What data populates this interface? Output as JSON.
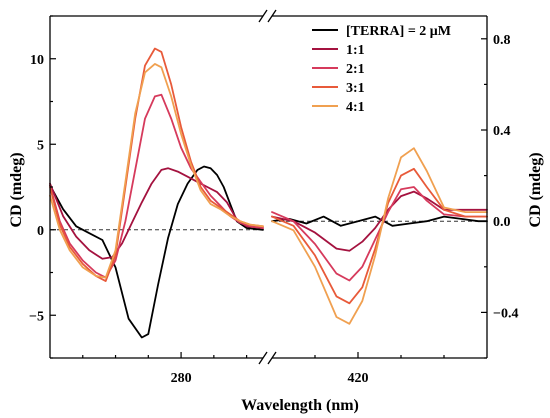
{
  "chart_data": {
    "type": "line",
    "xlabel": "Wavelength (nm)",
    "ylabel_left": "CD (mdeg)",
    "ylabel_right": "CD (mdeg)",
    "segments": [
      {
        "name": "left",
        "xlim": [
          240,
          305
        ],
        "ylim": [
          -7.5,
          12.5
        ],
        "axis": "left"
      },
      {
        "name": "right",
        "xlim": [
          400,
          450
        ],
        "ylim": [
          -0.6,
          0.9
        ],
        "axis": "right"
      }
    ],
    "x_ticks": [
      {
        "value": 280,
        "segment": "left",
        "label": "280"
      },
      {
        "value": 420,
        "segment": "right",
        "label": "420"
      }
    ],
    "y_ticks_left": [
      {
        "value": -5,
        "label": "−5"
      },
      {
        "value": 0,
        "label": "0"
      },
      {
        "value": 5,
        "label": "5"
      },
      {
        "value": 10,
        "label": "10"
      }
    ],
    "y_ticks_right": [
      {
        "value": -0.4,
        "label": "−0.4"
      },
      {
        "value": 0.0,
        "label": "0.0"
      },
      {
        "value": 0.4,
        "label": "0.4"
      },
      {
        "value": 0.8,
        "label": "0.8"
      }
    ],
    "zero_line": true,
    "axis_break": true,
    "legend_position": "top-right",
    "series": [
      {
        "name": "[TERRA] = 2 μM",
        "color": "#000000",
        "left": [
          [
            240,
            2.6
          ],
          [
            244,
            1.2
          ],
          [
            248,
            0.2
          ],
          [
            252,
            -0.2
          ],
          [
            256,
            -0.6
          ],
          [
            260,
            -2.2
          ],
          [
            264,
            -5.2
          ],
          [
            268,
            -6.3
          ],
          [
            270,
            -6.1
          ],
          [
            273,
            -3.2
          ],
          [
            276,
            -0.5
          ],
          [
            279,
            1.5
          ],
          [
            282,
            2.7
          ],
          [
            285,
            3.5
          ],
          [
            287,
            3.7
          ],
          [
            289,
            3.6
          ],
          [
            291,
            3.2
          ],
          [
            293,
            2.5
          ],
          [
            295,
            1.5
          ],
          [
            297,
            0.5
          ],
          [
            300,
            0.1
          ],
          [
            305,
            0.0
          ]
        ],
        "right": [
          [
            400,
            0.0
          ],
          [
            404,
            0.01
          ],
          [
            408,
            -0.01
          ],
          [
            412,
            0.02
          ],
          [
            416,
            -0.02
          ],
          [
            420,
            0.0
          ],
          [
            424,
            0.02
          ],
          [
            428,
            -0.02
          ],
          [
            432,
            -0.01
          ],
          [
            436,
            0.0
          ],
          [
            440,
            0.02
          ],
          [
            444,
            0.01
          ],
          [
            448,
            0.0
          ],
          [
            450,
            0.0
          ]
        ]
      },
      {
        "name": "1:1",
        "color": "#a4123f",
        "left": [
          [
            240,
            2.7
          ],
          [
            244,
            0.8
          ],
          [
            248,
            -0.4
          ],
          [
            252,
            -1.2
          ],
          [
            256,
            -1.7
          ],
          [
            259,
            -1.6
          ],
          [
            262,
            -0.8
          ],
          [
            265,
            0.4
          ],
          [
            268,
            1.6
          ],
          [
            271,
            2.7
          ],
          [
            274,
            3.5
          ],
          [
            276,
            3.6
          ],
          [
            279,
            3.4
          ],
          [
            282,
            3.1
          ],
          [
            285,
            2.8
          ],
          [
            288,
            2.5
          ],
          [
            291,
            2.2
          ],
          [
            294,
            1.6
          ],
          [
            297,
            0.6
          ],
          [
            300,
            0.2
          ],
          [
            305,
            0.1
          ]
        ],
        "right": [
          [
            400,
            0.02
          ],
          [
            405,
            0.0
          ],
          [
            410,
            -0.05
          ],
          [
            415,
            -0.12
          ],
          [
            418,
            -0.13
          ],
          [
            421,
            -0.09
          ],
          [
            424,
            -0.03
          ],
          [
            427,
            0.05
          ],
          [
            430,
            0.11
          ],
          [
            433,
            0.13
          ],
          [
            436,
            0.1
          ],
          [
            440,
            0.05
          ],
          [
            445,
            0.05
          ],
          [
            450,
            0.05
          ]
        ]
      },
      {
        "name": "2:1",
        "color": "#d63a5c",
        "left": [
          [
            240,
            2.6
          ],
          [
            243,
            0.5
          ],
          [
            246,
            -0.8
          ],
          [
            250,
            -1.8
          ],
          [
            254,
            -2.5
          ],
          [
            257,
            -2.8
          ],
          [
            260,
            -1.8
          ],
          [
            263,
            0.5
          ],
          [
            266,
            3.5
          ],
          [
            269,
            6.5
          ],
          [
            272,
            7.8
          ],
          [
            274,
            7.9
          ],
          [
            277,
            6.5
          ],
          [
            280,
            4.8
          ],
          [
            283,
            3.6
          ],
          [
            286,
            2.8
          ],
          [
            289,
            2.0
          ],
          [
            292,
            1.4
          ],
          [
            295,
            0.8
          ],
          [
            298,
            0.4
          ],
          [
            301,
            0.2
          ],
          [
            305,
            0.1
          ]
        ],
        "right": [
          [
            400,
            0.04
          ],
          [
            405,
            0.0
          ],
          [
            410,
            -0.1
          ],
          [
            415,
            -0.23
          ],
          [
            418,
            -0.26
          ],
          [
            421,
            -0.2
          ],
          [
            424,
            -0.08
          ],
          [
            427,
            0.04
          ],
          [
            430,
            0.14
          ],
          [
            433,
            0.15
          ],
          [
            436,
            0.09
          ],
          [
            440,
            0.03
          ],
          [
            445,
            0.02
          ],
          [
            450,
            0.02
          ]
        ]
      },
      {
        "name": "3:1",
        "color": "#e85a3a",
        "left": [
          [
            240,
            2.5
          ],
          [
            243,
            0.3
          ],
          [
            246,
            -1.0
          ],
          [
            250,
            -2.0
          ],
          [
            254,
            -2.7
          ],
          [
            257,
            -3.0
          ],
          [
            260,
            -1.5
          ],
          [
            263,
            2.5
          ],
          [
            266,
            6.5
          ],
          [
            269,
            9.6
          ],
          [
            272,
            10.6
          ],
          [
            274,
            10.4
          ],
          [
            277,
            8.5
          ],
          [
            280,
            6.0
          ],
          [
            283,
            4.0
          ],
          [
            286,
            2.5
          ],
          [
            289,
            1.7
          ],
          [
            292,
            1.3
          ],
          [
            295,
            0.9
          ],
          [
            298,
            0.5
          ],
          [
            301,
            0.3
          ],
          [
            305,
            0.2
          ]
        ],
        "right": [
          [
            400,
            0.02
          ],
          [
            405,
            -0.02
          ],
          [
            410,
            -0.15
          ],
          [
            415,
            -0.33
          ],
          [
            418,
            -0.36
          ],
          [
            421,
            -0.29
          ],
          [
            424,
            -0.12
          ],
          [
            427,
            0.08
          ],
          [
            430,
            0.2
          ],
          [
            433,
            0.23
          ],
          [
            436,
            0.15
          ],
          [
            440,
            0.05
          ],
          [
            445,
            0.02
          ],
          [
            450,
            0.02
          ]
        ]
      },
      {
        "name": "4:1",
        "color": "#f0a050",
        "left": [
          [
            240,
            2.0
          ],
          [
            243,
            0.0
          ],
          [
            246,
            -1.2
          ],
          [
            250,
            -2.2
          ],
          [
            254,
            -2.7
          ],
          [
            257,
            -2.8
          ],
          [
            260,
            -1.2
          ],
          [
            263,
            2.8
          ],
          [
            266,
            6.8
          ],
          [
            269,
            9.2
          ],
          [
            272,
            9.7
          ],
          [
            274,
            9.5
          ],
          [
            277,
            7.8
          ],
          [
            280,
            5.6
          ],
          [
            283,
            3.8
          ],
          [
            286,
            2.3
          ],
          [
            289,
            1.5
          ],
          [
            292,
            1.2
          ],
          [
            295,
            0.8
          ],
          [
            298,
            0.5
          ],
          [
            301,
            0.3
          ],
          [
            305,
            0.2
          ]
        ],
        "right": [
          [
            400,
            0.0
          ],
          [
            405,
            -0.04
          ],
          [
            410,
            -0.2
          ],
          [
            415,
            -0.42
          ],
          [
            418,
            -0.45
          ],
          [
            421,
            -0.35
          ],
          [
            424,
            -0.15
          ],
          [
            427,
            0.1
          ],
          [
            430,
            0.28
          ],
          [
            433,
            0.32
          ],
          [
            436,
            0.22
          ],
          [
            440,
            0.06
          ],
          [
            445,
            0.04
          ],
          [
            450,
            0.04
          ]
        ]
      }
    ]
  }
}
